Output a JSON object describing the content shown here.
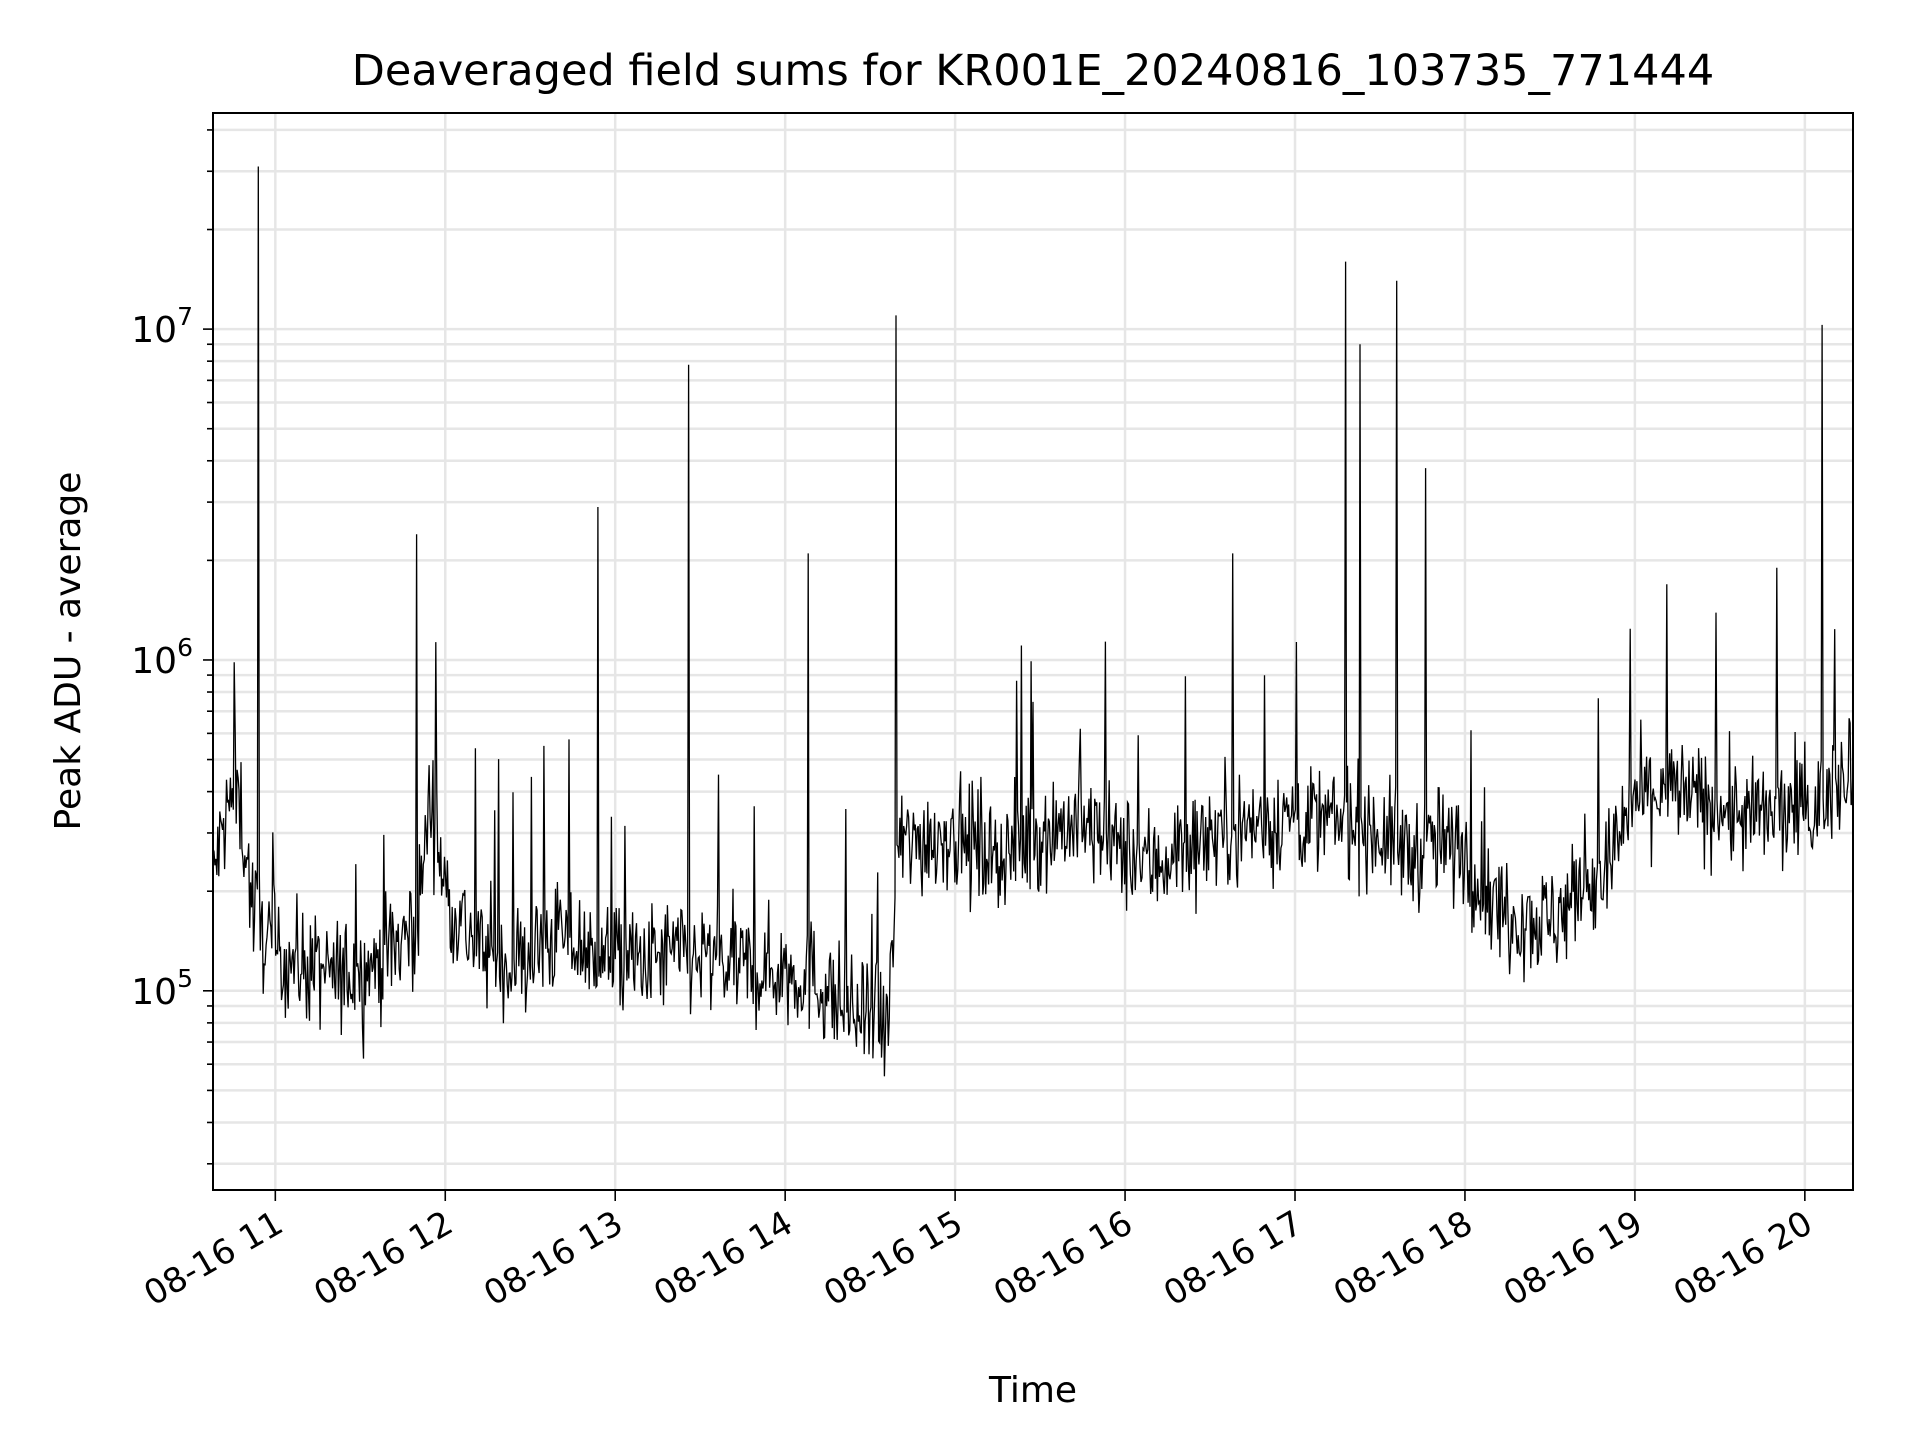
{
  "chart_data": {
    "type": "line",
    "title": "Deaveraged field sums for KR001E_20240816_103735_771444",
    "xlabel": "Time",
    "ylabel": "Peak ADU - average",
    "y_scale": "log",
    "xlim": [
      "2024-08-16T10:38",
      "2024-08-16T20:17"
    ],
    "ylim": [
      25000,
      45000000
    ],
    "x_ticks": [
      "08-16 11",
      "08-16 12",
      "08-16 13",
      "08-16 14",
      "08-16 15",
      "08-16 16",
      "08-16 17",
      "08-16 18",
      "08-16 19",
      "08-16 20"
    ],
    "y_ticks": [
      {
        "base": "10",
        "exp": "5",
        "value": 100000
      },
      {
        "base": "10",
        "exp": "6",
        "value": 1000000
      },
      {
        "base": "10",
        "exp": "7",
        "value": 10000000
      }
    ],
    "grid": true,
    "line_color": "#000000",
    "grid_color": "#e6e6e6",
    "series": [
      {
        "x": [
          "2024-08-16T10:38",
          "2024-08-16T10:43",
          "2024-08-16T10:47",
          "2024-08-16T10:52",
          "2024-08-16T10:56",
          "2024-08-16T11:00",
          "2024-08-16T11:10",
          "2024-08-16T11:20",
          "2024-08-16T11:30",
          "2024-08-16T11:40",
          "2024-08-16T11:50",
          "2024-08-16T11:55",
          "2024-08-16T12:00",
          "2024-08-16T12:10",
          "2024-08-16T12:20",
          "2024-08-16T12:30",
          "2024-08-16T12:40",
          "2024-08-16T12:50",
          "2024-08-16T13:00",
          "2024-08-16T13:10",
          "2024-08-16T13:20",
          "2024-08-16T13:30",
          "2024-08-16T13:40",
          "2024-08-16T13:50",
          "2024-08-16T14:00",
          "2024-08-16T14:10",
          "2024-08-16T14:20",
          "2024-08-16T14:30",
          "2024-08-16T14:36",
          "2024-08-16T14:40",
          "2024-08-16T14:50",
          "2024-08-16T15:00",
          "2024-08-16T15:10",
          "2024-08-16T15:20",
          "2024-08-16T15:30",
          "2024-08-16T15:40",
          "2024-08-16T15:50",
          "2024-08-16T16:00",
          "2024-08-16T16:10",
          "2024-08-16T16:20",
          "2024-08-16T16:30",
          "2024-08-16T16:40",
          "2024-08-16T16:50",
          "2024-08-16T17:00",
          "2024-08-16T17:10",
          "2024-08-16T17:20",
          "2024-08-16T17:30",
          "2024-08-16T17:40",
          "2024-08-16T17:50",
          "2024-08-16T18:00",
          "2024-08-16T18:10",
          "2024-08-16T18:20",
          "2024-08-16T18:30",
          "2024-08-16T18:40",
          "2024-08-16T18:50",
          "2024-08-16T19:00",
          "2024-08-16T19:10",
          "2024-08-16T19:20",
          "2024-08-16T19:30",
          "2024-08-16T19:40",
          "2024-08-16T19:50",
          "2024-08-16T20:00",
          "2024-08-16T20:05",
          "2024-08-16T20:10",
          "2024-08-16T20:17"
        ],
        "values": [
          220000,
          350000,
          400000,
          180000,
          150000,
          130000,
          120000,
          110000,
          115000,
          130000,
          160000,
          400000,
          200000,
          140000,
          120000,
          125000,
          150000,
          130000,
          125000,
          120000,
          130000,
          125000,
          120000,
          115000,
          115000,
          110000,
          90000,
          80000,
          75000,
          270000,
          290000,
          300000,
          270000,
          260000,
          300000,
          320000,
          300000,
          260000,
          240000,
          270000,
          300000,
          310000,
          320000,
          340000,
          320000,
          330000,
          300000,
          260000,
          280000,
          260000,
          180000,
          170000,
          160000,
          200000,
          230000,
          380000,
          410000,
          380000,
          360000,
          330000,
          340000,
          350000,
          350000,
          420000,
          520000
        ]
      }
    ],
    "spikes": [
      {
        "x": "2024-08-16T10:54",
        "value": 31000000
      },
      {
        "x": "2024-08-16T11:50",
        "value": 2400000
      },
      {
        "x": "2024-08-16T12:54",
        "value": 2900000
      },
      {
        "x": "2024-08-16T13:26",
        "value": 7800000
      },
      {
        "x": "2024-08-16T14:08",
        "value": 2100000
      },
      {
        "x": "2024-08-16T14:39",
        "value": 11000000
      },
      {
        "x": "2024-08-16T16:38",
        "value": 2100000
      },
      {
        "x": "2024-08-16T17:18",
        "value": 16000000
      },
      {
        "x": "2024-08-16T17:23",
        "value": 9000000
      },
      {
        "x": "2024-08-16T17:36",
        "value": 14000000
      },
      {
        "x": "2024-08-16T17:46",
        "value": 3800000
      },
      {
        "x": "2024-08-16T19:50",
        "value": 1900000
      },
      {
        "x": "2024-08-16T20:06",
        "value": 10300000
      }
    ]
  }
}
